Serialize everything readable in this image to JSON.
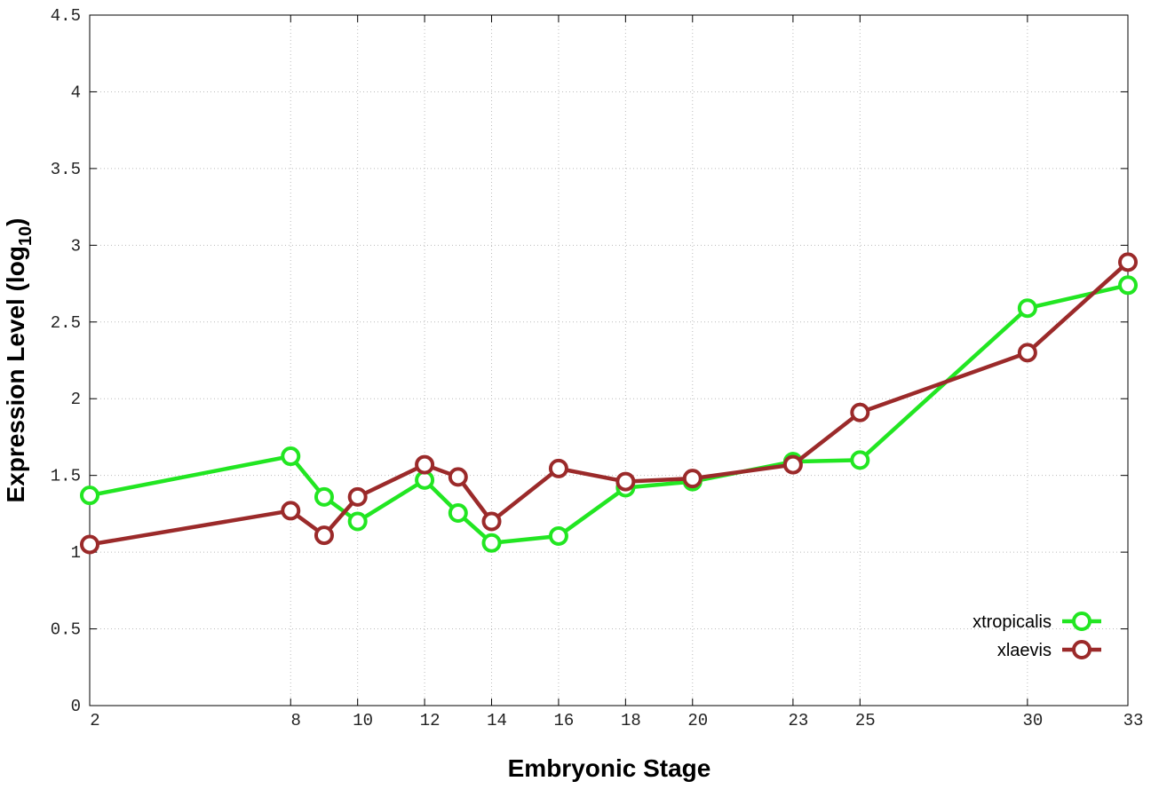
{
  "chart_data": {
    "type": "line",
    "xlabel": "Embryonic Stage",
    "ylabel": [
      "Expression Level (log",
      "10",
      ")"
    ],
    "x": [
      2,
      8,
      9,
      10,
      12,
      13,
      14,
      16,
      18,
      20,
      23,
      25,
      30,
      33
    ],
    "series": [
      {
        "name": "xtropicalis",
        "color": "#22e622",
        "values": [
          1.37,
          1.625,
          1.36,
          1.2,
          1.47,
          1.255,
          1.06,
          1.105,
          1.42,
          1.46,
          1.59,
          1.6,
          2.59,
          2.74
        ]
      },
      {
        "name": "xlaevis",
        "color": "#9b2a2a",
        "values": [
          1.05,
          1.27,
          1.11,
          1.36,
          1.57,
          1.49,
          1.2,
          1.545,
          1.46,
          1.48,
          1.57,
          1.91,
          2.3,
          2.89
        ]
      }
    ],
    "xlim": [
      2,
      33
    ],
    "xticks": [
      2,
      8,
      10,
      12,
      14,
      16,
      18,
      20,
      23,
      25,
      30,
      33
    ],
    "ylim": [
      0,
      4.5
    ],
    "yticks": [
      0,
      0.5,
      1,
      1.5,
      2,
      2.5,
      3,
      3.5,
      4,
      4.5
    ],
    "grid": true,
    "legend": "bottom-right"
  }
}
